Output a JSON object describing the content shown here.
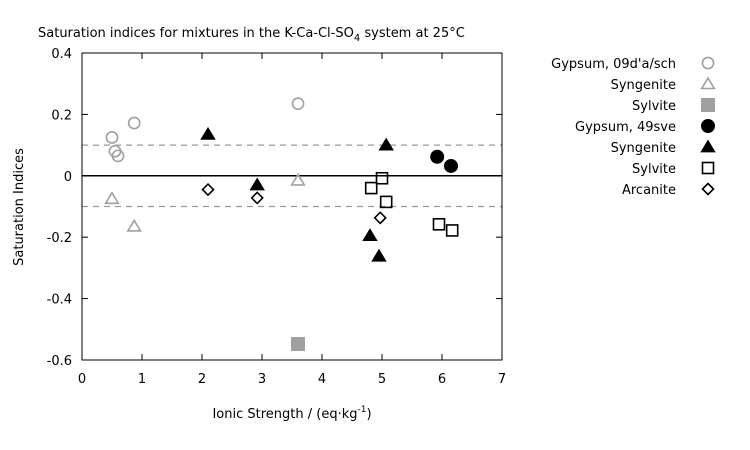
{
  "chart_data": {
    "type": "scatter",
    "title": {
      "prefix": "Saturation indices for mixtures in the K-Ca-Cl-SO",
      "subscript": "4",
      "suffix": " system at 25°C"
    },
    "xlabel": {
      "prefix": "Ionic Strength / (eq·kg",
      "superscript": "-1",
      "suffix": ")"
    },
    "ylabel": "Saturation Indices",
    "xlim": [
      0,
      7
    ],
    "ylim": [
      -0.6,
      0.4
    ],
    "xticks": [
      0,
      1,
      2,
      3,
      4,
      5,
      6,
      7
    ],
    "yticks": [
      -0.6,
      -0.4,
      -0.2,
      0,
      0.2,
      0.4
    ],
    "xtick_labels": [
      "0",
      "1",
      "2",
      "3",
      "4",
      "5",
      "6",
      "7"
    ],
    "ytick_labels": [
      "-0.6",
      "-0.4",
      "-0.2",
      "0",
      "0.2",
      "0.4"
    ],
    "reference_lines": [
      {
        "y": 0,
        "style": "solid",
        "color": "#000000"
      },
      {
        "y": 0.1,
        "style": "dashed",
        "color": "#999999"
      },
      {
        "y": -0.1,
        "style": "dashed",
        "color": "#999999"
      }
    ],
    "grid": false,
    "legend_position": "right",
    "series": [
      {
        "name": "Gypsum, 09d'a/sch",
        "marker": "circle-open",
        "color": "#a0a0a0",
        "points": [
          [
            0.5,
            0.125
          ],
          [
            0.55,
            0.08
          ],
          [
            0.6,
            0.065
          ],
          [
            0.87,
            0.172
          ],
          [
            3.6,
            0.235
          ]
        ]
      },
      {
        "name": "Syngenite",
        "marker": "triangle-open",
        "color": "#a0a0a0",
        "points": [
          [
            0.5,
            -0.075
          ],
          [
            0.87,
            -0.165
          ],
          [
            3.6,
            -0.015
          ]
        ]
      },
      {
        "name": "Sylvite",
        "marker": "square-filled",
        "color": "#a0a0a0",
        "points": [
          [
            3.6,
            -0.548
          ]
        ]
      },
      {
        "name": "Gypsum, 49sve",
        "marker": "circle-filled",
        "color": "#000000",
        "points": [
          [
            5.92,
            0.062
          ],
          [
            6.15,
            0.032
          ]
        ]
      },
      {
        "name": "Syngenite",
        "marker": "triangle-filled",
        "color": "#000000",
        "points": [
          [
            2.1,
            0.135
          ],
          [
            2.92,
            -0.03
          ],
          [
            4.8,
            -0.195
          ],
          [
            4.95,
            -0.262
          ],
          [
            5.07,
            0.1
          ]
        ]
      },
      {
        "name": "Sylvite",
        "marker": "square-open",
        "color": "#000000",
        "points": [
          [
            4.82,
            -0.04
          ],
          [
            5.0,
            -0.008
          ],
          [
            5.07,
            -0.085
          ],
          [
            5.95,
            -0.158
          ],
          [
            6.17,
            -0.178
          ]
        ]
      },
      {
        "name": "Arcanite",
        "marker": "diamond-open",
        "color": "#000000",
        "points": [
          [
            2.1,
            -0.045
          ],
          [
            2.92,
            -0.072
          ],
          [
            4.97,
            -0.137
          ]
        ]
      }
    ]
  }
}
